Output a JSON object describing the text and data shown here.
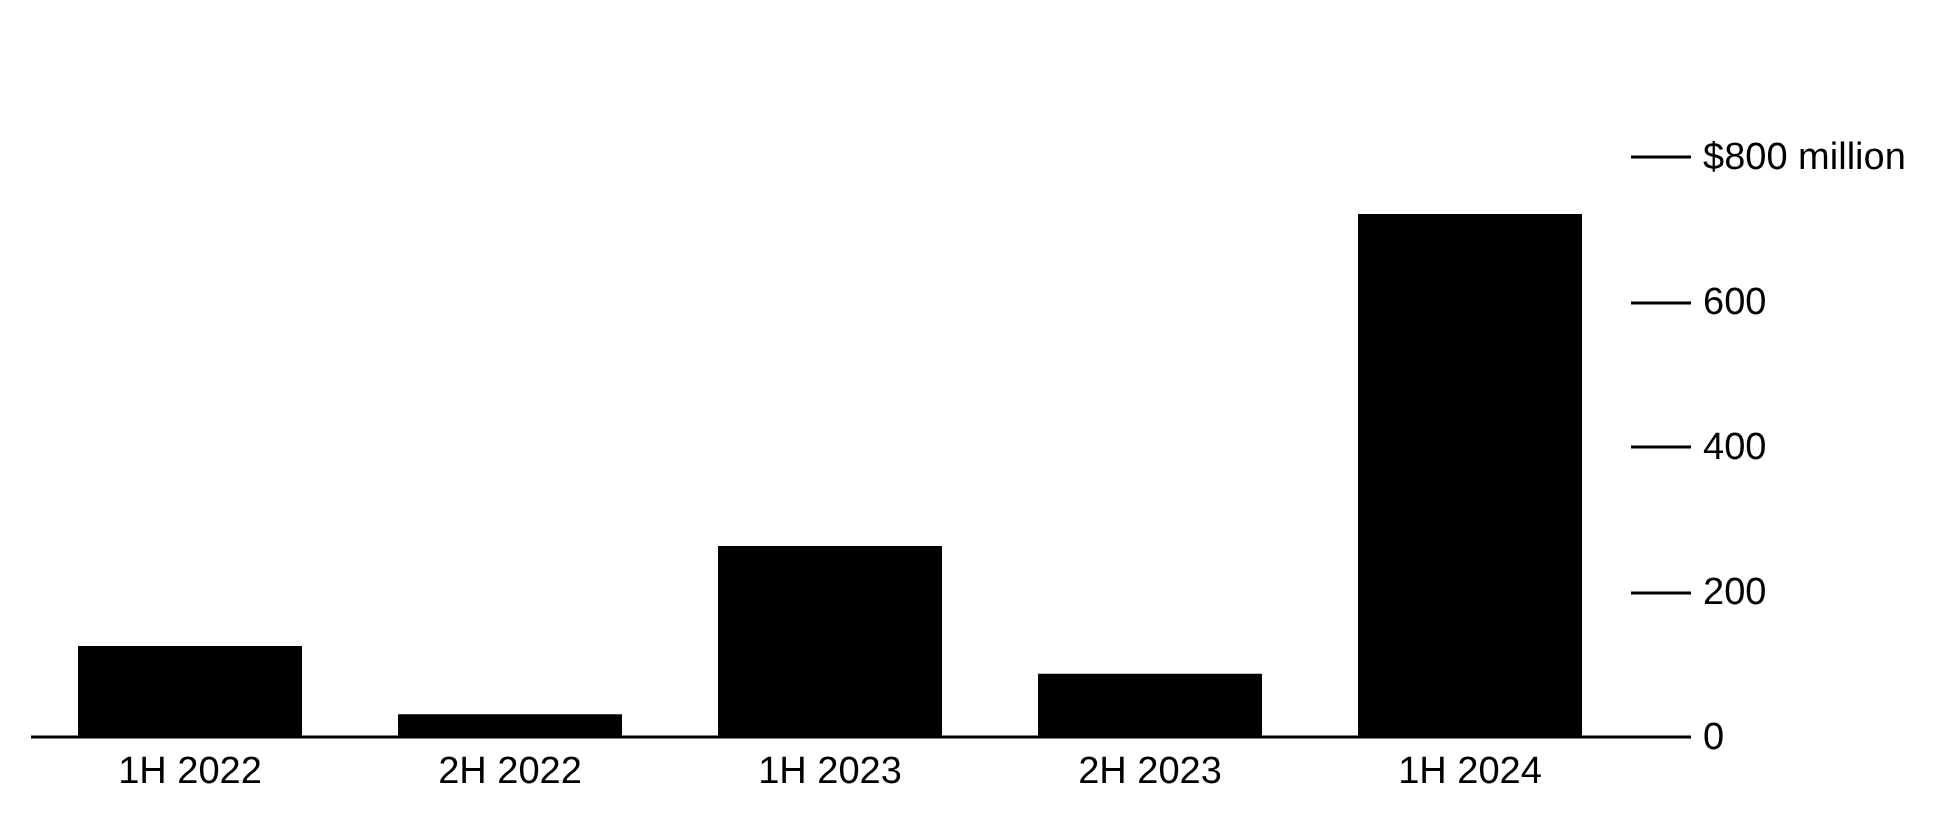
{
  "chart_data": {
    "type": "bar",
    "categories": [
      "1H 2022",
      "2H 2022",
      "1H 2023",
      "2H 2023",
      "1H 2024"
    ],
    "values": [
      124,
      30,
      262,
      86,
      720
    ],
    "color": "#000000",
    "ylim": [
      0,
      800
    ],
    "yticks": [
      0,
      200,
      400,
      600,
      {
        "value": 800,
        "label": "$800 million"
      }
    ],
    "grid": false
  }
}
